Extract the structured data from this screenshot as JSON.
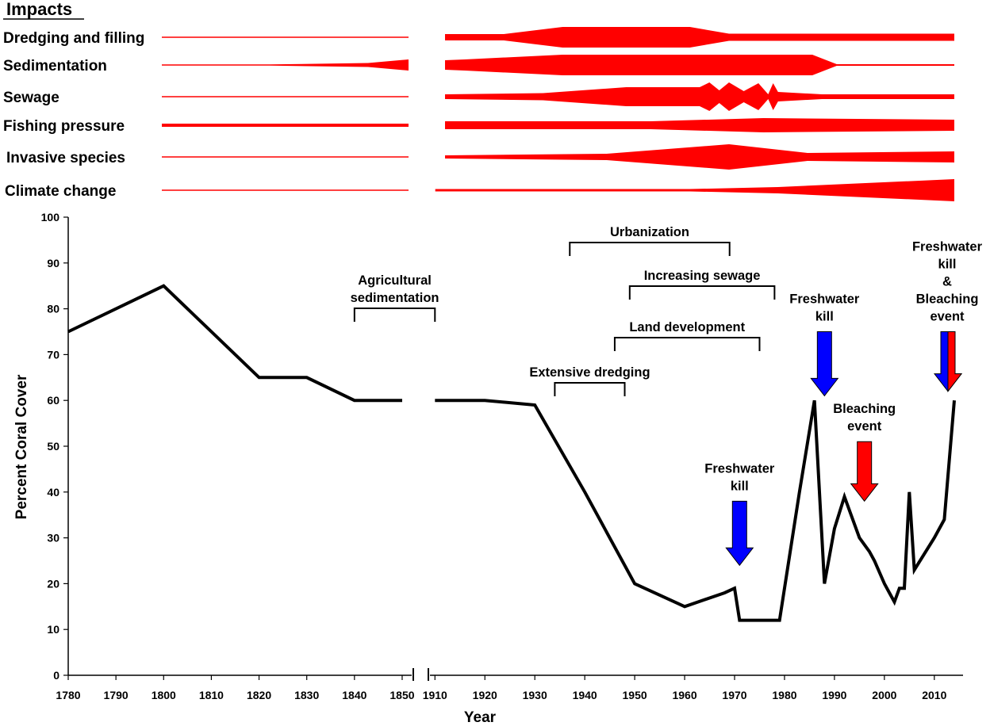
{
  "chart_data": {
    "type": "line",
    "impacts_title": "Impacts",
    "impacts": [
      {
        "name": "Dredging and filling",
        "widths": [
          [
            1780,
            1.5
          ],
          [
            1853,
            1.5
          ],
          [
            1910,
            8
          ],
          [
            1922,
            8
          ],
          [
            1934,
            26
          ],
          [
            1960,
            26
          ],
          [
            1968,
            9
          ],
          [
            2014,
            9
          ]
        ]
      },
      {
        "name": "Sedimentation",
        "widths": [
          [
            1780,
            1.5
          ],
          [
            1812,
            1.5
          ],
          [
            1841,
            5
          ],
          [
            1853,
            14
          ],
          [
            1910,
            12
          ],
          [
            1914,
            14
          ],
          [
            1934,
            26
          ],
          [
            1985,
            26
          ],
          [
            1990,
            2
          ],
          [
            2014,
            2
          ]
        ]
      },
      {
        "name": "Sewage",
        "widths": [
          [
            1780,
            1.5
          ],
          [
            1853,
            1.5
          ],
          [
            1910,
            6
          ],
          [
            1930,
            9
          ],
          [
            1947,
            24
          ],
          [
            1962,
            24
          ],
          [
            1964,
            36
          ],
          [
            1966,
            16
          ],
          [
            1968,
            36
          ],
          [
            1971,
            14
          ],
          [
            1974,
            34
          ],
          [
            1976,
            6
          ],
          [
            1977,
            34
          ],
          [
            1978,
            12
          ],
          [
            1987,
            6
          ],
          [
            2014,
            6
          ]
        ]
      },
      {
        "name": "Fishing pressure",
        "widths": [
          [
            1780,
            4
          ],
          [
            1853,
            4
          ],
          [
            1910,
            10
          ],
          [
            1952,
            10
          ],
          [
            1975,
            18
          ],
          [
            2014,
            14
          ]
        ]
      },
      {
        "name": "Invasive species",
        "widths": [
          [
            1780,
            1.5
          ],
          [
            1853,
            1.5
          ],
          [
            1910,
            4
          ],
          [
            1943,
            8
          ],
          [
            1968,
            32
          ],
          [
            1984,
            10
          ],
          [
            2014,
            14
          ]
        ]
      },
      {
        "name": "Climate change",
        "widths": [
          [
            1780,
            1.5
          ],
          [
            1853,
            1.5
          ],
          [
            1908,
            3
          ],
          [
            1960,
            3
          ],
          [
            1978,
            8
          ],
          [
            2014,
            28
          ]
        ]
      }
    ],
    "xlabel": "Year",
    "ylabel": "Percent Coral Cover",
    "ylim": [
      0,
      100
    ],
    "yticks": [
      0,
      10,
      20,
      30,
      40,
      50,
      60,
      70,
      80,
      90,
      100
    ],
    "xticks": [
      1780,
      1790,
      1800,
      1810,
      1820,
      1830,
      1840,
      1850,
      1910,
      1920,
      1930,
      1940,
      1950,
      1960,
      1970,
      1980,
      1990,
      2000,
      2010
    ],
    "axis_break": [
      1852,
      1909
    ],
    "series": [
      {
        "x": [
          1780,
          1800,
          1820,
          1830,
          1840,
          1850
        ],
        "y": [
          75,
          85,
          65,
          65,
          60,
          60
        ]
      },
      {
        "x": [
          1910,
          1920,
          1930,
          1940,
          1950,
          1960,
          1968,
          1970,
          1971,
          1979,
          1983,
          1986,
          1988,
          1990,
          1992,
          1995,
          1997,
          1998,
          2000,
          2001,
          2002,
          2003,
          2004,
          2005,
          2006,
          2010,
          2012,
          2014
        ],
        "y": [
          60,
          60,
          59,
          40,
          20,
          15,
          18,
          19,
          12,
          12,
          40,
          60,
          20,
          32,
          39,
          30,
          27,
          25,
          20,
          18,
          16,
          19,
          19,
          40,
          23,
          30,
          34,
          60
        ]
      }
    ],
    "brackets": [
      {
        "label": "Agricultural sedimentation",
        "label_lines": [
          "Agricultural",
          "sedimentation"
        ],
        "x_start": 1840,
        "x_end": 1910
      },
      {
        "label": "Urbanization",
        "x_start": 1937,
        "x_end": 1969
      },
      {
        "label": "Increasing sewage",
        "x_start": 1949,
        "x_end": 1978
      },
      {
        "label": "Land development",
        "x_start": 1946,
        "x_end": 1975
      },
      {
        "label": "Extensive dredging",
        "x_start": 1934,
        "x_end": 1948
      }
    ],
    "events": [
      {
        "label": "Freshwater kill",
        "label_lines": [
          "Freshwater",
          "kill"
        ],
        "x": 1971,
        "arrow_top": 38,
        "arrow_tip": 24,
        "color": "#0000ff"
      },
      {
        "label": "Freshwater kill",
        "label_lines": [
          "Freshwater",
          "kill"
        ],
        "x": 1988,
        "arrow_top": 75,
        "arrow_tip": 61,
        "color": "#0000ff"
      },
      {
        "label": "Bleaching event",
        "label_lines": [
          "Bleaching",
          "event"
        ],
        "x": 1996,
        "arrow_top": 51,
        "arrow_tip": 38,
        "color": "#ff0000"
      },
      {
        "label": "Freshwater kill & Bleaching event",
        "label_lines": [
          "Freshwater",
          "kill",
          "&",
          "Bleaching",
          "event"
        ],
        "x": 2014,
        "arrow_top": 75,
        "arrow_tip": 62,
        "colors": [
          "#0000ff",
          "#ff0000"
        ]
      }
    ],
    "colors": {
      "line": "#000000",
      "impact": "#ff0000",
      "freshwater": "#0000ff",
      "bleaching": "#ff0000"
    }
  }
}
